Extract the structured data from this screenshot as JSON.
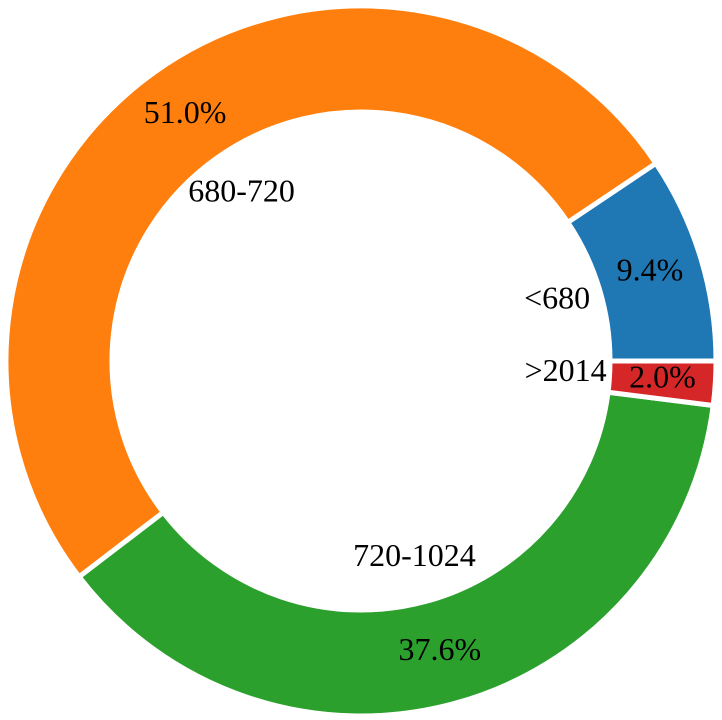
{
  "chart_data": {
    "type": "donut",
    "categories": [
      "<680",
      "680-720",
      "720-1024",
      ">2014"
    ],
    "values": [
      9.4,
      51.0,
      37.6,
      2.0
    ],
    "value_labels": [
      "9.4%",
      "51.0%",
      "37.6%",
      "2.0%"
    ],
    "colors": [
      "#1f77b4",
      "#ff7f0e",
      "#2ca02c",
      "#d62728"
    ]
  }
}
